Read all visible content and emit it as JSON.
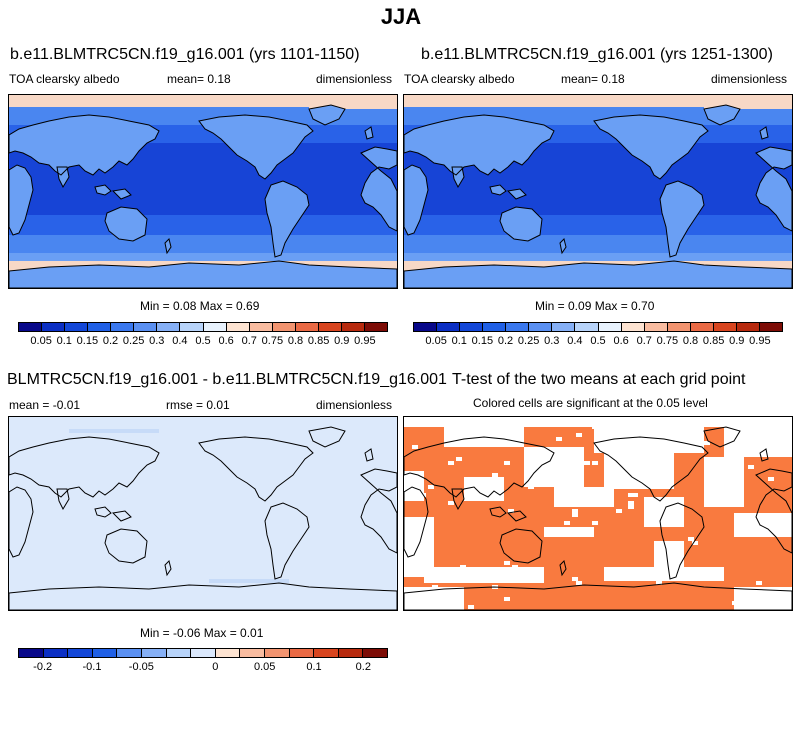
{
  "figure": {
    "title": "JJA"
  },
  "panels": [
    {
      "id": "p1",
      "title": "b.e11.BLMTRC5CN.f19_g16.001 (yrs 1101-1150)",
      "left_label": "TOA clearsky albedo",
      "center_label": "mean=   0.18",
      "right_label": "dimensionless",
      "stats": "Min =   0.08 Max =   0.69"
    },
    {
      "id": "p2",
      "title": "b.e11.BLMTRC5CN.f19_g16.001 (yrs 1251-1300)",
      "left_label": "TOA clearsky albedo",
      "center_label": "mean=   0.18",
      "right_label": "dimensionless",
      "stats": "Min =   0.09 Max =   0.70"
    },
    {
      "id": "p3",
      "title": "BLMTRC5CN.f19_g16.001 - b.e11.BLMTRC5CN.f19_g16.001",
      "left_label": "mean =  -0.01",
      "center_label": "rmse =   0.01",
      "right_label": "dimensionless",
      "stats": "Min =  -0.06 Max =   0.01"
    },
    {
      "id": "p4",
      "title": "T-test of the two means at each grid point",
      "subtitle": "Colored cells are significant at the 0.05 level"
    }
  ],
  "colorbar_albedo": {
    "labels": [
      "0.05",
      "0.1",
      "0.15",
      "0.2",
      "0.25",
      "0.3",
      "0.4",
      "0.5",
      "0.6",
      "0.7",
      "0.75",
      "0.8",
      "0.85",
      "0.9",
      "0.95"
    ],
    "colors": [
      "#08088a",
      "#0b2fc4",
      "#1347d8",
      "#2060e6",
      "#3a78ee",
      "#5a90f2",
      "#86b0f6",
      "#b8d4fa",
      "#e8f2fd",
      "#fde3d1",
      "#f9bca0",
      "#f29470",
      "#ea6a45",
      "#d8451f",
      "#b72a0e",
      "#7d0c06"
    ]
  },
  "colorbar_diff": {
    "labels": [
      "-0.2",
      "-0.1",
      "-0.05",
      "0",
      "0.05",
      "0.1",
      "0.2"
    ],
    "colors": [
      "#08088a",
      "#0b2fc4",
      "#1347d8",
      "#2060e6",
      "#5a90f2",
      "#86b0f6",
      "#b8d4fa",
      "#dbe8fc",
      "#fde3d1",
      "#f9bca0",
      "#f29470",
      "#ea6a45",
      "#d8451f",
      "#b72a0e",
      "#7d0c06"
    ]
  },
  "map_colors": {
    "ocean_deep": "#1744d6",
    "ocean_mid": "#2962e8",
    "ocean_light": "#4a86f0",
    "land": "#6a9ff4",
    "polar_ice": "#f7d8c6",
    "diff_bg": "#dce9fb",
    "ttest_orange": "#f97a3f",
    "white": "#ffffff"
  }
}
